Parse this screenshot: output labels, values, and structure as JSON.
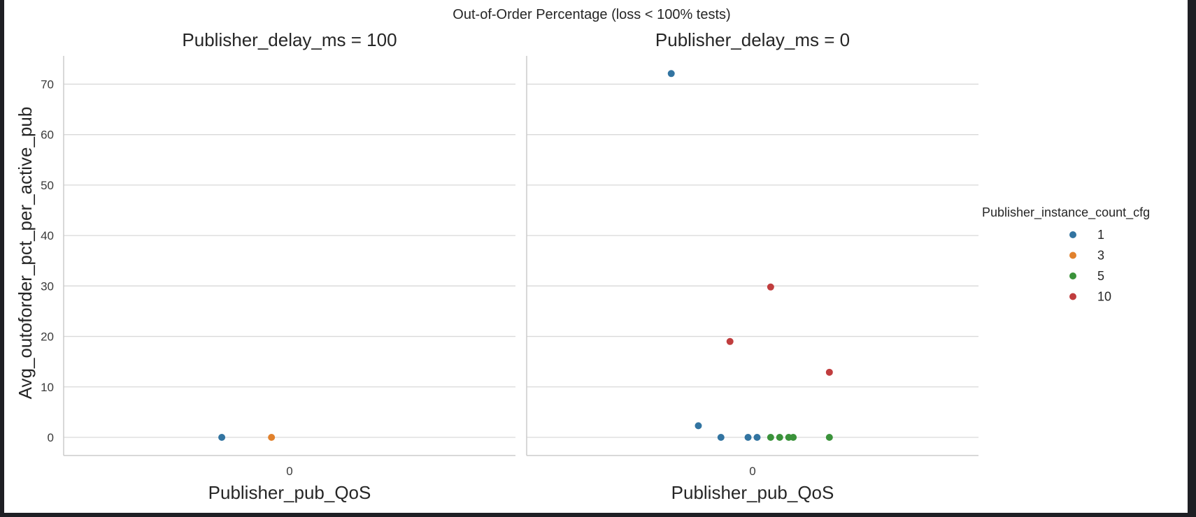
{
  "chart_data": {
    "type": "scatter",
    "title": "Out-of-Order Percentage (loss < 100% tests)",
    "ylabel": "Avg_outoforder_pct_per_active_pub",
    "ylim": [
      -3.6,
      75.6
    ],
    "yticks": [
      0,
      10,
      20,
      30,
      40,
      50,
      60,
      70
    ],
    "grid": true,
    "legend": {
      "title": "Publisher_instance_count_cfg",
      "placement": "right",
      "entries": [
        {
          "label": "1",
          "color": "#3274a1"
        },
        {
          "label": "3",
          "color": "#e1812c"
        },
        {
          "label": "5",
          "color": "#3a923a"
        },
        {
          "label": "10",
          "color": "#c03d3e"
        }
      ]
    },
    "panels": [
      {
        "title": "Publisher_delay_ms = 100",
        "xlabel": "Publisher_pub_QoS",
        "categories": [
          "0"
        ],
        "points": [
          {
            "x_offset": -0.15,
            "y": 0,
            "group": "1"
          },
          {
            "x_offset": -0.04,
            "y": 0,
            "group": "3"
          }
        ]
      },
      {
        "title": "Publisher_delay_ms = 0",
        "xlabel": "Publisher_pub_QoS",
        "categories": [
          "0"
        ],
        "points": [
          {
            "x_offset": -0.18,
            "y": 72.1,
            "group": "1"
          },
          {
            "x_offset": -0.12,
            "y": 2.3,
            "group": "1"
          },
          {
            "x_offset": -0.07,
            "y": 0,
            "group": "1"
          },
          {
            "x_offset": -0.01,
            "y": 0,
            "group": "1"
          },
          {
            "x_offset": 0.01,
            "y": 0,
            "group": "1"
          },
          {
            "x_offset": 0.04,
            "y": 0,
            "group": "5"
          },
          {
            "x_offset": 0.06,
            "y": 0,
            "group": "5"
          },
          {
            "x_offset": 0.08,
            "y": 0,
            "group": "5"
          },
          {
            "x_offset": 0.09,
            "y": 0,
            "group": "5"
          },
          {
            "x_offset": 0.17,
            "y": 0,
            "group": "5"
          },
          {
            "x_offset": -0.05,
            "y": 19.0,
            "group": "10"
          },
          {
            "x_offset": 0.04,
            "y": 29.8,
            "group": "10"
          },
          {
            "x_offset": 0.17,
            "y": 12.9,
            "group": "10"
          }
        ]
      }
    ]
  }
}
